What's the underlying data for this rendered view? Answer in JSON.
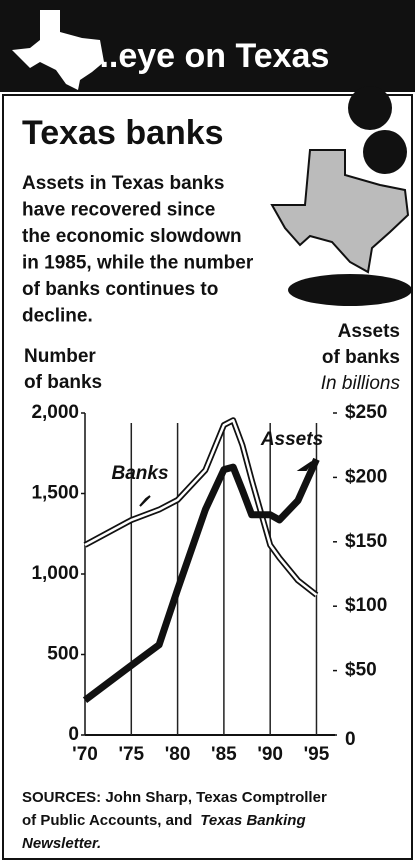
{
  "header": "...eye on Texas",
  "chart_data": {
    "type": "line",
    "title": "Texas banks",
    "subtitle": [
      "Assets in Texas banks",
      "have recovered since",
      "the economic slowdown",
      "in 1985, while the number",
      "of banks continues to",
      "decline."
    ],
    "y_label": [
      "Number",
      "of banks"
    ],
    "y2_label": [
      "Assets",
      "of banks",
      "In billions"
    ],
    "x": [
      1970,
      1975,
      1978,
      1980,
      1983,
      1985,
      1986,
      1987,
      1988,
      1990,
      1991,
      1993,
      1995
    ],
    "series": [
      {
        "name": "Banks",
        "color": "#111111",
        "values": [
          1180,
          1335,
          1400,
          1460,
          1645,
          1925,
          1955,
          1800,
          1585,
          1180,
          1100,
          960,
          870
        ]
      },
      {
        "name": "Assets",
        "color": "#111111",
        "axis": "y2",
        "values": [
          27,
          54,
          70,
          113,
          175,
          206,
          208,
          190,
          171,
          171,
          167,
          182,
          214
        ]
      }
    ],
    "xlim": [
      1970,
      1997
    ],
    "xticks": [
      {
        "value": 1970,
        "label": "'70"
      },
      {
        "value": 1975,
        "label": "'75"
      },
      {
        "value": 1980,
        "label": "'80"
      },
      {
        "value": 1985,
        "label": "'85"
      },
      {
        "value": 1990,
        "label": "'90"
      },
      {
        "value": 1995,
        "label": "'95"
      }
    ],
    "ylim": [
      0,
      2000
    ],
    "yticks": [
      0,
      500,
      {
        "value": 1000,
        "label": "1,000"
      },
      {
        "value": 1500,
        "label": "1,500"
      },
      {
        "value": 2000,
        "label": "2,000"
      }
    ],
    "y2lim": [
      0,
      250
    ],
    "y2ticks": [
      0,
      {
        "value": 50,
        "label": "$50"
      },
      {
        "value": 100,
        "label": "$100"
      },
      {
        "value": 150,
        "label": "$150"
      },
      {
        "value": 200,
        "label": "$200"
      },
      {
        "value": 250,
        "label": "$250"
      }
    ],
    "grid": true,
    "sources": [
      "SOURCES: John Sharp, Texas Comptroller",
      "of Public Accounts, and",
      "Texas Banking",
      "Newsletter."
    ]
  }
}
